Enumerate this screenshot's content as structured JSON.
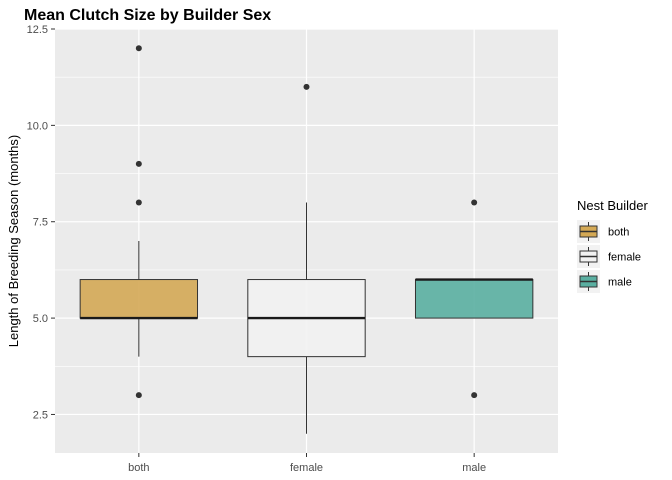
{
  "chart_data": {
    "type": "boxplot",
    "title": "Mean Clutch Size by Builder Sex",
    "xlabel": "",
    "ylabel": "Length of Breeding Season (months)",
    "ylim": [
      1.5,
      12.5
    ],
    "yticks": [
      2.5,
      5.0,
      7.5,
      10.0,
      12.5
    ],
    "ytick_labels": [
      "2.5",
      "5.0",
      "7.5",
      "10.0",
      "12.5"
    ],
    "categories": [
      "both",
      "female",
      "male"
    ],
    "boxes": [
      {
        "category": "both",
        "min": 4,
        "q1": 5,
        "median": 5,
        "q3": 6,
        "max": 7,
        "outliers": [
          12,
          9,
          8,
          3
        ],
        "fill": "#d4a955"
      },
      {
        "category": "female",
        "min": 2,
        "q1": 4,
        "median": 5,
        "q3": 6,
        "max": 8,
        "outliers": [
          11
        ],
        "fill": "#f2f2f2"
      },
      {
        "category": "male",
        "min": 5,
        "q1": 5,
        "median": 6,
        "q3": 6,
        "max": 6,
        "outliers": [
          8,
          3
        ],
        "fill": "#5aafa1"
      }
    ],
    "grid": true,
    "legend": {
      "title": "Nest Builder",
      "position": "right",
      "entries": [
        {
          "label": "both",
          "fill": "#d4a955"
        },
        {
          "label": "female",
          "fill": "#f2f2f2"
        },
        {
          "label": "male",
          "fill": "#5aafa1"
        }
      ]
    },
    "panel_background": "#ebebeb"
  }
}
